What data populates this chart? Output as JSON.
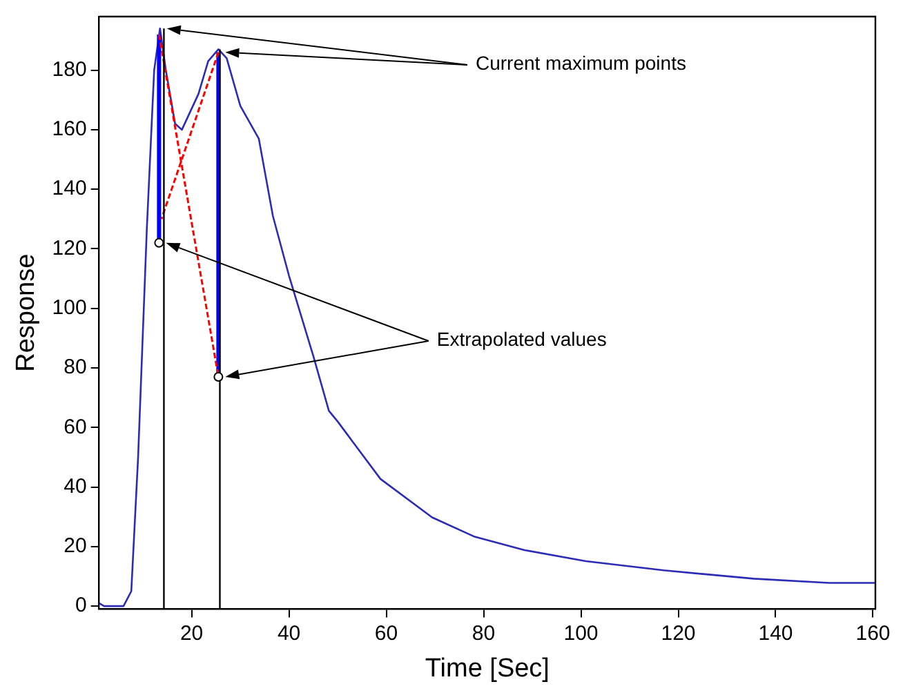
{
  "chart_data": {
    "type": "line",
    "xlabel": "Time [Sec]",
    "ylabel": "Response",
    "xlim": [
      1,
      160.5
    ],
    "ylim": [
      -1,
      198
    ],
    "xticks": [
      20,
      40,
      60,
      80,
      100,
      120,
      140,
      160
    ],
    "yticks": [
      0,
      20,
      40,
      60,
      80,
      100,
      120,
      140,
      160,
      180
    ],
    "grid": false,
    "legend": false,
    "annotations": [
      "Current maximum points",
      "Extrapolated values"
    ],
    "series": [
      {
        "color": "#2b2bb5",
        "x": [
          1,
          2,
          6,
          7.6,
          9,
          10.8,
          12.3,
          13.5,
          14.7,
          16.6,
          18,
          21.4,
          23.4,
          25.5,
          27.2,
          30,
          33.8,
          36.7,
          40,
          45,
          48.2,
          50,
          58.8,
          69.4,
          78,
          88.4,
          101,
          117,
          135.5,
          151,
          160.5
        ],
        "values": [
          1,
          0,
          0,
          5,
          50,
          127,
          180,
          194,
          180,
          162,
          160,
          172,
          183,
          187,
          184,
          168,
          157,
          131,
          111,
          84,
          65.6,
          62,
          42.7,
          29.8,
          23.4,
          18.8,
          15.1,
          12,
          9.2,
          7.8,
          7.8
        ]
      },
      {
        "color": "#0000ff",
        "x": [
          13.3,
          13.3
        ],
        "values": [
          122,
          192
        ]
      },
      {
        "color": "#0000ff",
        "x": [
          25.5,
          25.5
        ],
        "values": [
          77,
          186
        ]
      },
      {
        "color": "#ff0000",
        "line_style": "dashed",
        "x": [
          13.3,
          25.5
        ],
        "values": [
          192,
          77
        ]
      },
      {
        "color": "#ff0000",
        "line_style": "dashed",
        "x": [
          25.5,
          13.8
        ],
        "values": [
          186,
          130
        ]
      },
      {
        "color": "#000000",
        "x": [
          14.3,
          14.3
        ],
        "values": [
          -1,
          194
        ]
      },
      {
        "color": "#000000",
        "x": [
          25.8,
          25.8
        ],
        "values": [
          -1,
          187
        ]
      },
      {
        "type": "scatter",
        "color": "#000000",
        "marker": "circle",
        "x": [
          13.3,
          25.5
        ],
        "values": [
          122,
          77
        ]
      }
    ]
  }
}
